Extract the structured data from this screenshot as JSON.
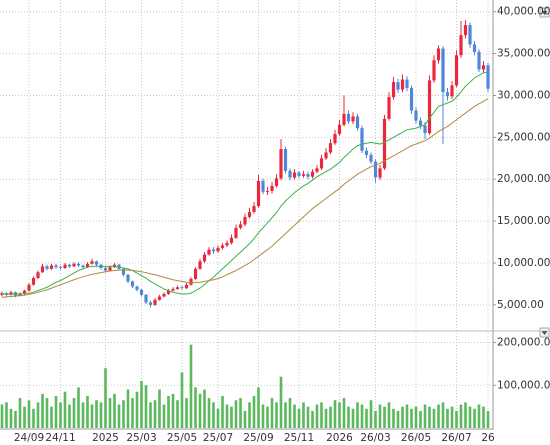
{
  "chart_data": {
    "type": "candlestick",
    "categories": [
      null,
      null,
      null,
      null,
      null,
      null,
      "24/09",
      null,
      null,
      null,
      null,
      null,
      null,
      "24/11",
      null,
      null,
      null,
      null,
      null,
      null,
      null,
      null,
      null,
      "2025",
      null,
      null,
      null,
      null,
      null,
      null,
      null,
      "25/03",
      null,
      null,
      null,
      null,
      null,
      null,
      null,
      null,
      "25/05",
      null,
      null,
      null,
      null,
      null,
      null,
      null,
      "25/07",
      null,
      null,
      null,
      null,
      null,
      null,
      null,
      null,
      "25/09",
      null,
      null,
      null,
      null,
      null,
      null,
      null,
      null,
      "25/11",
      null,
      null,
      null,
      null,
      null,
      null,
      null,
      null,
      "2026",
      null,
      null,
      null,
      null,
      null,
      null,
      null,
      "26/03",
      null,
      null,
      null,
      null,
      null,
      null,
      null,
      null,
      "26/05",
      null,
      null,
      null,
      null,
      null,
      null,
      null,
      null,
      "26/07",
      null,
      null,
      null,
      null,
      null,
      null,
      "26"
    ],
    "open": [
      6200,
      6400,
      6200,
      6500,
      6100,
      6300,
      6700,
      7400,
      8200,
      8900,
      9600,
      9300,
      9700,
      9500,
      9400,
      9800,
      9600,
      9900,
      9700,
      9500,
      9900,
      10200,
      9800,
      9400,
      9100,
      9500,
      9800,
      9300,
      8600,
      7800,
      7200,
      6800,
      6200,
      5300,
      5000,
      5600,
      6000,
      6300,
      6700,
      6900,
      7100,
      7000,
      7400,
      8100,
      9300,
      10200,
      11000,
      11600,
      11400,
      11800,
      12100,
      12400,
      13000,
      14200,
      14600,
      15500,
      16100,
      16800,
      19800,
      18500,
      18600,
      19200,
      20100,
      23600,
      21000,
      20200,
      20800,
      20400,
      20600,
      20300,
      20900,
      21300,
      22500,
      23200,
      24300,
      25400,
      26500,
      27800,
      26900,
      27500,
      26100,
      23400,
      22900,
      22100,
      20200,
      21300,
      27200,
      29800,
      31600,
      30700,
      31900,
      30900,
      28200,
      27000,
      26400,
      25500,
      31800,
      34200,
      35600,
      30400,
      29900,
      31200,
      34800,
      37200,
      38400,
      36100,
      35200,
      33100,
      33600
    ],
    "high": [
      6600,
      6500,
      6700,
      6600,
      6500,
      6800,
      7600,
      8400,
      9100,
      9900,
      9800,
      9900,
      9900,
      9700,
      10000,
      9900,
      10100,
      10100,
      9800,
      10100,
      10500,
      10300,
      9900,
      9600,
      9700,
      10000,
      9900,
      9400,
      8700,
      7900,
      7300,
      6900,
      6300,
      5500,
      5800,
      6200,
      6500,
      6900,
      7100,
      7300,
      7300,
      7600,
      8300,
      9500,
      10500,
      11300,
      11900,
      11900,
      12100,
      12400,
      12700,
      13400,
      14600,
      15000,
      15900,
      16600,
      17300,
      20500,
      20100,
      19100,
      19700,
      20600,
      24800,
      23900,
      21300,
      21200,
      21000,
      21000,
      20900,
      21200,
      21700,
      22900,
      23700,
      24800,
      25900,
      27100,
      30000,
      28200,
      28000,
      27800,
      26400,
      23800,
      23200,
      22400,
      21700,
      27700,
      30400,
      32200,
      32000,
      32500,
      32300,
      31200,
      28600,
      27400,
      26800,
      32400,
      34800,
      36000,
      35900,
      30900,
      31700,
      35400,
      38900,
      39000,
      38700,
      36500,
      35500,
      34100,
      33900
    ],
    "low": [
      6000,
      6000,
      6100,
      5900,
      6000,
      6200,
      6600,
      7300,
      8100,
      8800,
      9100,
      9200,
      9300,
      9200,
      9300,
      9400,
      9500,
      9500,
      9300,
      9400,
      9800,
      9600,
      9200,
      8900,
      9000,
      9400,
      9100,
      8400,
      7600,
      7000,
      6600,
      6000,
      5100,
      4700,
      4900,
      5500,
      5900,
      6200,
      6600,
      6800,
      6800,
      6900,
      7300,
      8000,
      9200,
      10000,
      10900,
      11100,
      11200,
      11600,
      11900,
      12200,
      12900,
      14000,
      14400,
      15300,
      15900,
      16600,
      18200,
      18100,
      18300,
      19000,
      19900,
      20700,
      19900,
      20000,
      20100,
      20200,
      20000,
      20100,
      20700,
      21100,
      22300,
      23000,
      24100,
      25200,
      26300,
      26600,
      26600,
      25800,
      23100,
      22500,
      21800,
      19600,
      19900,
      21100,
      27000,
      29500,
      30300,
      30400,
      30500,
      27800,
      26600,
      26000,
      24800,
      25300,
      31500,
      33800,
      24200,
      29400,
      29600,
      31000,
      34500,
      36800,
      35700,
      34800,
      32800,
      32700,
      30400
    ],
    "close": [
      6400,
      6200,
      6500,
      6100,
      6300,
      6700,
      7400,
      8200,
      8900,
      9600,
      9300,
      9700,
      9500,
      9400,
      9800,
      9600,
      9900,
      9700,
      9500,
      9900,
      10200,
      9800,
      9400,
      9100,
      9500,
      9800,
      9300,
      8600,
      7800,
      7200,
      6800,
      6200,
      5300,
      5000,
      5600,
      6000,
      6300,
      6700,
      6900,
      7100,
      7000,
      7400,
      8100,
      9300,
      10200,
      11000,
      11600,
      11400,
      11800,
      12100,
      12400,
      13000,
      14200,
      14600,
      15500,
      16100,
      16800,
      19800,
      18500,
      18600,
      19200,
      20100,
      23600,
      21000,
      20200,
      20800,
      20400,
      20600,
      20300,
      20900,
      21300,
      22500,
      23200,
      24300,
      25400,
      26500,
      27800,
      26900,
      27500,
      26100,
      23400,
      22900,
      22100,
      20200,
      21300,
      27200,
      29800,
      31600,
      30700,
      31900,
      30900,
      28200,
      27000,
      26400,
      25500,
      31800,
      34200,
      35600,
      30400,
      29900,
      31200,
      34800,
      37200,
      38400,
      36100,
      35200,
      33100,
      33600,
      30800
    ],
    "up_color": "#e8283c",
    "down_color": "#4f86dc",
    "moving_averages": [
      {
        "color": "#3cb04a",
        "values": [
          6300,
          6300,
          6300,
          6300,
          6300,
          6350,
          6400,
          6500,
          6700,
          6900,
          7100,
          7400,
          7700,
          7900,
          8200,
          8500,
          8800,
          9100,
          9300,
          9500,
          9600,
          9600,
          9600,
          9600,
          9600,
          9600,
          9500,
          9400,
          9300,
          9100,
          8800,
          8500,
          8200,
          7800,
          7500,
          7200,
          6900,
          6700,
          6500,
          6400,
          6300,
          6300,
          6400,
          6700,
          7000,
          7400,
          7900,
          8300,
          8800,
          9300,
          9800,
          10300,
          10800,
          11300,
          11800,
          12300,
          12900,
          13600,
          14200,
          14800,
          15400,
          16000,
          16800,
          17400,
          17900,
          18400,
          18800,
          19200,
          19500,
          19900,
          20300,
          20600,
          20900,
          21200,
          21600,
          22000,
          22600,
          23100,
          23600,
          24000,
          24200,
          24300,
          24400,
          24300,
          24200,
          24400,
          24700,
          25000,
          25300,
          25600,
          25900,
          26000,
          26100,
          26300,
          26500,
          27300,
          28000,
          28700,
          28900,
          29100,
          29300,
          29800,
          30400,
          31100,
          31600,
          32100,
          32400,
          32700,
          32800
        ]
      },
      {
        "color": "#b08a3e",
        "values": [
          5900,
          5950,
          6000,
          6050,
          6100,
          6150,
          6250,
          6350,
          6500,
          6650,
          6800,
          7000,
          7200,
          7400,
          7600,
          7800,
          8000,
          8200,
          8350,
          8500,
          8650,
          8750,
          8850,
          8950,
          9050,
          9100,
          9150,
          9150,
          9150,
          9100,
          9050,
          8950,
          8850,
          8700,
          8600,
          8450,
          8300,
          8150,
          8000,
          7900,
          7800,
          7700,
          7650,
          7650,
          7700,
          7800,
          7900,
          8000,
          8150,
          8350,
          8600,
          8850,
          9100,
          9400,
          9700,
          10000,
          10400,
          10800,
          11200,
          11600,
          12000,
          12500,
          13000,
          13500,
          14000,
          14500,
          15000,
          15500,
          16000,
          16500,
          16900,
          17300,
          17700,
          18100,
          18500,
          18900,
          19400,
          19800,
          20200,
          20600,
          20900,
          21200,
          21500,
          21700,
          21900,
          22200,
          22500,
          22800,
          23100,
          23400,
          23700,
          24000,
          24200,
          24400,
          24600,
          24900,
          25300,
          25700,
          26000,
          26300,
          26700,
          27100,
          27500,
          27900,
          28300,
          28700,
          29000,
          29300,
          29600
        ]
      }
    ],
    "ylim": [
      2000,
      40800
    ],
    "yticks": [
      {
        "value": 40000,
        "label": "40,000.00"
      },
      {
        "value": 35000,
        "label": "35,000.00"
      },
      {
        "value": 30000,
        "label": "30,000.00"
      },
      {
        "value": 25000,
        "label": "25,000.00"
      },
      {
        "value": 20000,
        "label": "20,000.00"
      },
      {
        "value": 15000,
        "label": "15,000.00"
      },
      {
        "value": 10000,
        "label": "10,000.00"
      },
      {
        "value": 5000,
        "label": "5,000.00"
      }
    ],
    "grid": true,
    "volume": {
      "color": "#5cb85c",
      "values": [
        55000,
        60000,
        45000,
        40000,
        70000,
        50000,
        65000,
        45000,
        60000,
        80000,
        70000,
        50000,
        75000,
        60000,
        85000,
        55000,
        70000,
        95000,
        60000,
        75000,
        55000,
        65000,
        60000,
        140000,
        70000,
        80000,
        55000,
        65000,
        90000,
        70000,
        85000,
        110000,
        100000,
        60000,
        65000,
        90000,
        55000,
        75000,
        80000,
        65000,
        130000,
        70000,
        195000,
        95000,
        80000,
        90000,
        70000,
        60000,
        45000,
        75000,
        55000,
        50000,
        65000,
        70000,
        40000,
        60000,
        75000,
        95000,
        55000,
        50000,
        70000,
        60000,
        120000,
        60000,
        70000,
        55000,
        45000,
        60000,
        50000,
        40000,
        55000,
        60000,
        45000,
        50000,
        65000,
        60000,
        70000,
        50000,
        45000,
        60000,
        55000,
        45000,
        65000,
        40000,
        55000,
        50000,
        60000,
        45000,
        40000,
        50000,
        55000,
        45000,
        50000,
        40000,
        55000,
        50000,
        45000,
        55000,
        60000,
        45000,
        50000,
        40000,
        55000,
        60000,
        50000,
        45000,
        55000,
        50000,
        40000
      ],
      "ylim": [
        0,
        220000
      ],
      "yticks": [
        {
          "value": 200000,
          "label": "200,000.00"
        },
        {
          "value": 100000,
          "label": "100,000.00"
        }
      ]
    }
  }
}
